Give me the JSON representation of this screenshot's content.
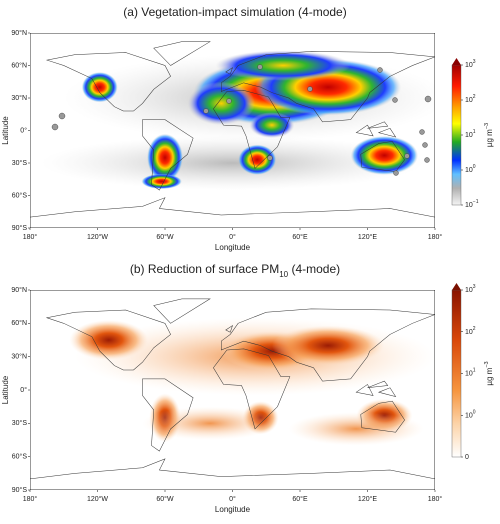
{
  "panels": [
    {
      "title": {
        "before": "(a) Vegetation-impact simulation (4-mode)"
      },
      "x_label": "Longitude",
      "y_label": "Latitude",
      "x_ticks": [
        "180°",
        "120°W",
        "60°W",
        "0°",
        "60°E",
        "120°E",
        "180°"
      ],
      "y_ticks": [
        "90°N",
        "60°N",
        "30°N",
        "0°",
        "30°S",
        "60°S",
        "90°S"
      ],
      "colorbar": {
        "label": {
          "base": "µg m",
          "exp": "−3"
        },
        "ticks": [
          {
            "base": "10",
            "exp": "3"
          },
          {
            "base": "10",
            "exp": "2"
          },
          {
            "base": "10",
            "exp": "1"
          },
          {
            "base": "10",
            "exp": "0"
          },
          {
            "base": "10",
            "exp": "−1"
          }
        ]
      }
    },
    {
      "title": {
        "before": "(b) Reduction of surface PM",
        "sub": "10",
        "after": " (4-mode)"
      },
      "x_label": "Longitude",
      "y_label": "Latitude",
      "x_ticks": [
        "180°",
        "120°W",
        "60°W",
        "0°",
        "60°E",
        "120°E",
        "180°"
      ],
      "y_ticks": [
        "90°N",
        "60°N",
        "30°N",
        "0°",
        "30°S",
        "60°S",
        "90°S"
      ],
      "colorbar": {
        "label": {
          "base": "µg m",
          "exp": "−3"
        },
        "ticks": [
          {
            "base": "10",
            "exp": "3"
          },
          {
            "base": "10",
            "exp": "2"
          },
          {
            "base": "10",
            "exp": "1"
          },
          {
            "base": "10",
            "exp": "0"
          },
          {
            "base": "0"
          }
        ]
      }
    }
  ]
}
